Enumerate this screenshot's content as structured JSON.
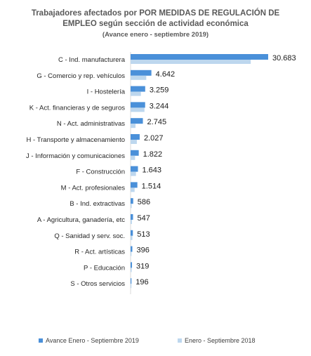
{
  "chart_data": {
    "type": "bar",
    "orientation": "horizontal",
    "title_lines": [
      "Trabajadores afectados por POR MEDIDAS DE REGULACIÓN DE",
      "EMPLEO según  sección de actividad económica"
    ],
    "subtitle": "(Avance enero - septiembre 2019)",
    "categories": [
      "C - Ind. manufacturera",
      "G - Comercio y rep. vehículos",
      "I - Hostelería",
      "K - Act. financieras y de seguros",
      "N - Act. administrativas",
      "H - Transporte y almacenamiento",
      "J - Información y comunicaciones",
      "F - Construcción",
      "M - Act. profesionales",
      "B - Ind. extractivas",
      "A - Agricultura, ganadería, etc",
      "Q - Sanidad y serv. soc.",
      "R - Act. artísticas",
      "P - Educación",
      "S - Otros servicios"
    ],
    "value_labels": [
      "30.683",
      "4.642",
      "3.259",
      "3.244",
      "2.745",
      "2.027",
      "1.822",
      "1.643",
      "1.514",
      "586",
      "547",
      "513",
      "396",
      "319",
      "196"
    ],
    "series": [
      {
        "name": "Avance Enero - Septiembre 2019",
        "color": "#4a90d9",
        "values": [
          30683,
          4642,
          3259,
          3244,
          2745,
          2027,
          1822,
          1643,
          1514,
          586,
          547,
          513,
          396,
          319,
          196
        ]
      },
      {
        "name": "Enero - Septiembre 2018",
        "color": "#bdd7ee",
        "values": [
          26800,
          3500,
          2300,
          3100,
          1100,
          1400,
          1000,
          1200,
          900,
          250,
          300,
          400,
          200,
          250,
          150
        ]
      }
    ],
    "xlim": [
      0,
      31000
    ],
    "grid": false,
    "legend_position": "bottom"
  }
}
